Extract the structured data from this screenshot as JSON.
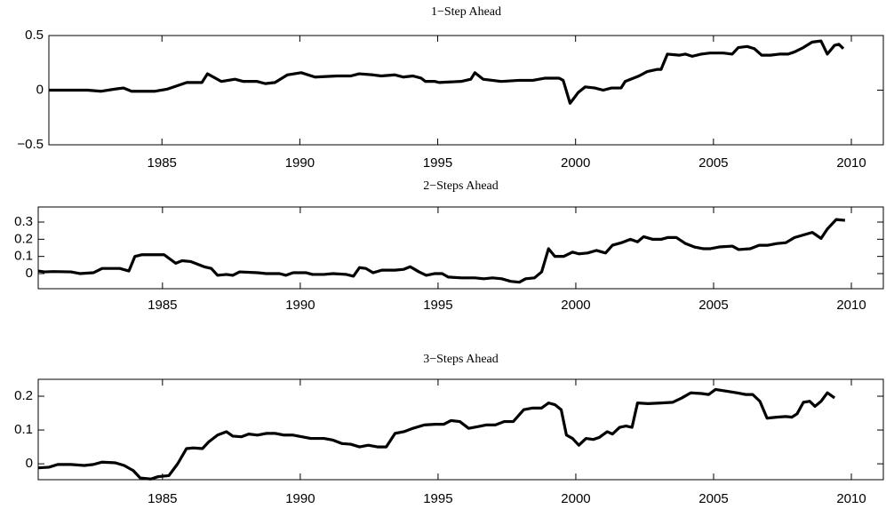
{
  "chart_data": [
    {
      "type": "line",
      "title": "1−Step Ahead",
      "color": "#000000",
      "xlim": [
        1980.9,
        2011.16
      ],
      "ylim": [
        -0.5,
        0.5
      ],
      "xticks": [
        1985,
        1990,
        1995,
        2000,
        2005,
        2010
      ],
      "yticks": [
        {
          "value": -0.5,
          "label": "−0.5"
        },
        0,
        0.5
      ],
      "x": [
        1980.9,
        1982.0,
        1982.3,
        1982.8,
        1983.3,
        1983.6,
        1983.9,
        1984.75,
        1985.2,
        1985.9,
        1986.45,
        1986.65,
        1987.15,
        1987.65,
        1987.95,
        1988.45,
        1988.75,
        1989.1,
        1989.55,
        1990.05,
        1990.55,
        1991.35,
        1991.85,
        1992.15,
        1992.65,
        1992.95,
        1993.45,
        1993.75,
        1994.1,
        1994.4,
        1994.55,
        1994.9,
        1995.05,
        1995.85,
        1996.2,
        1996.35,
        1996.65,
        1997.3,
        1997.95,
        1998.45,
        1998.9,
        1999.4,
        1999.55,
        1999.8,
        2000.1,
        2000.35,
        2000.7,
        2001.0,
        2001.3,
        2001.65,
        2001.8,
        2002.3,
        2002.6,
        2002.95,
        2003.1,
        2003.33,
        2003.75,
        2003.98,
        2004.23,
        2004.55,
        2004.87,
        2005.36,
        2005.68,
        2005.9,
        2006.22,
        2006.48,
        2006.75,
        2007.07,
        2007.39,
        2007.71,
        2007.94,
        2008.26,
        2008.58,
        2008.9,
        2009.13,
        2009.39,
        2009.55,
        2009.71
      ],
      "values": [
        0,
        0,
        0,
        -0.01,
        0.01,
        0.02,
        -0.01,
        -0.01,
        0.01,
        0.07,
        0.07,
        0.15,
        0.08,
        0.1,
        0.08,
        0.08,
        0.06,
        0.07,
        0.14,
        0.16,
        0.12,
        0.13,
        0.13,
        0.15,
        0.14,
        0.13,
        0.14,
        0.12,
        0.13,
        0.11,
        0.08,
        0.08,
        0.07,
        0.08,
        0.1,
        0.16,
        0.1,
        0.08,
        0.09,
        0.09,
        0.11,
        0.11,
        0.09,
        -0.12,
        -0.02,
        0.03,
        0.02,
        0,
        0.02,
        0.02,
        0.08,
        0.13,
        0.17,
        0.19,
        0.19,
        0.33,
        0.32,
        0.33,
        0.31,
        0.33,
        0.34,
        0.34,
        0.33,
        0.39,
        0.4,
        0.38,
        0.32,
        0.32,
        0.33,
        0.33,
        0.35,
        0.39,
        0.44,
        0.45,
        0.33,
        0.41,
        0.42,
        0.38
      ]
    },
    {
      "type": "line",
      "title": "2−Steps Ahead",
      "color": "#000000",
      "xlim": [
        1980.49,
        2011.16
      ],
      "ylim": [
        -0.088,
        0.388
      ],
      "xticks": [
        1985,
        1990,
        1995,
        2000,
        2005,
        2010
      ],
      "yticks": [
        0,
        0.1,
        0.2,
        0.3
      ],
      "x": [
        1980.49,
        1980.72,
        1981.04,
        1981.68,
        1982.0,
        1982.49,
        1982.81,
        1983.13,
        1983.45,
        1983.78,
        1984.0,
        1984.26,
        1984.74,
        1985.06,
        1985.48,
        1985.71,
        1986.03,
        1986.51,
        1986.77,
        1987.0,
        1987.32,
        1987.55,
        1987.8,
        1988.45,
        1988.77,
        1989.25,
        1989.48,
        1989.74,
        1990.22,
        1990.44,
        1990.86,
        1991.19,
        1991.67,
        1991.93,
        1992.15,
        1992.38,
        1992.64,
        1992.96,
        1993.44,
        1993.76,
        1993.99,
        1994.31,
        1994.57,
        1994.89,
        1995.15,
        1995.37,
        1995.86,
        1996.34,
        1996.66,
        1996.98,
        1997.31,
        1997.63,
        1997.95,
        1998.18,
        1998.5,
        1998.76,
        1999.01,
        1999.24,
        1999.56,
        1999.88,
        2000.11,
        2000.43,
        2000.75,
        2001.08,
        2001.33,
        2001.66,
        2001.98,
        2002.24,
        2002.46,
        2002.78,
        2003.11,
        2003.33,
        2003.65,
        2003.98,
        2004.3,
        2004.62,
        2004.88,
        2005.2,
        2005.68,
        2005.91,
        2006.33,
        2006.65,
        2006.97,
        2007.29,
        2007.62,
        2007.94,
        2008.26,
        2008.58,
        2008.9,
        2009.13,
        2009.45,
        2009.77
      ],
      "values": [
        0.015,
        0.01,
        0.012,
        0.01,
        0.0,
        0.005,
        0.03,
        0.03,
        0.03,
        0.015,
        0.1,
        0.11,
        0.11,
        0.11,
        0.06,
        0.075,
        0.07,
        0.04,
        0.03,
        -0.01,
        -0.005,
        -0.01,
        0.01,
        0.005,
        0.0,
        0.0,
        -0.01,
        0.005,
        0.005,
        -0.005,
        -0.005,
        0.0,
        -0.005,
        -0.015,
        0.035,
        0.03,
        0.005,
        0.02,
        0.02,
        0.025,
        0.04,
        0.01,
        -0.01,
        0.0,
        0.0,
        -0.02,
        -0.025,
        -0.025,
        -0.03,
        -0.025,
        -0.03,
        -0.045,
        -0.05,
        -0.03,
        -0.025,
        0.01,
        0.145,
        0.1,
        0.1,
        0.125,
        0.115,
        0.12,
        0.135,
        0.12,
        0.165,
        0.18,
        0.2,
        0.185,
        0.215,
        0.2,
        0.2,
        0.21,
        0.21,
        0.175,
        0.155,
        0.145,
        0.145,
        0.155,
        0.16,
        0.14,
        0.145,
        0.165,
        0.165,
        0.175,
        0.18,
        0.21,
        0.225,
        0.24,
        0.205,
        0.26,
        0.315,
        0.31
      ]
    },
    {
      "type": "line",
      "title": "3−Steps Ahead",
      "color": "#000000",
      "xlim": [
        1980.49,
        2011.16
      ],
      "ylim": [
        -0.047,
        0.25
      ],
      "xticks": [
        1985,
        1990,
        1995,
        2000,
        2005,
        2010
      ],
      "yticks": [
        0,
        0.1,
        0.2
      ],
      "x": [
        1980.49,
        1980.88,
        1981.2,
        1981.68,
        1982.16,
        1982.49,
        1982.81,
        1983.29,
        1983.61,
        1983.94,
        1984.19,
        1984.58,
        1984.84,
        1985.23,
        1985.55,
        1985.87,
        1986.13,
        1986.45,
        1986.68,
        1987.0,
        1987.32,
        1987.55,
        1987.87,
        1988.13,
        1988.45,
        1988.77,
        1989.09,
        1989.41,
        1989.74,
        1990.06,
        1990.38,
        1990.86,
        1991.19,
        1991.51,
        1991.83,
        1992.15,
        1992.47,
        1992.8,
        1993.12,
        1993.44,
        1993.76,
        1994.09,
        1994.5,
        1994.89,
        1995.21,
        1995.47,
        1995.79,
        1996.11,
        1996.44,
        1996.76,
        1997.08,
        1997.4,
        1997.73,
        1998.11,
        1998.43,
        1998.76,
        1999.01,
        1999.24,
        1999.47,
        1999.66,
        1999.88,
        2000.11,
        2000.37,
        2000.63,
        2000.85,
        2001.14,
        2001.33,
        2001.59,
        2001.82,
        2002.04,
        2002.24,
        2002.62,
        2003.11,
        2003.52,
        2003.85,
        2004.17,
        2004.56,
        2004.82,
        2005.07,
        2005.46,
        2005.84,
        2006.17,
        2006.42,
        2006.68,
        2006.94,
        2007.29,
        2007.62,
        2007.84,
        2008.03,
        2008.26,
        2008.49,
        2008.68,
        2008.9,
        2009.13,
        2009.39
      ],
      "values": [
        -0.012,
        -0.01,
        -0.002,
        -0.002,
        -0.005,
        -0.002,
        0.005,
        0.003,
        -0.005,
        -0.02,
        -0.042,
        -0.045,
        -0.038,
        -0.035,
        0.0,
        0.045,
        0.047,
        0.045,
        0.065,
        0.085,
        0.095,
        0.082,
        0.08,
        0.088,
        0.085,
        0.09,
        0.09,
        0.085,
        0.085,
        0.08,
        0.075,
        0.075,
        0.07,
        0.06,
        0.058,
        0.05,
        0.055,
        0.05,
        0.05,
        0.09,
        0.095,
        0.105,
        0.115,
        0.117,
        0.117,
        0.128,
        0.125,
        0.105,
        0.11,
        0.115,
        0.115,
        0.125,
        0.125,
        0.16,
        0.165,
        0.165,
        0.18,
        0.175,
        0.16,
        0.085,
        0.075,
        0.055,
        0.075,
        0.072,
        0.078,
        0.095,
        0.088,
        0.108,
        0.112,
        0.108,
        0.18,
        0.178,
        0.18,
        0.182,
        0.195,
        0.21,
        0.208,
        0.205,
        0.22,
        0.215,
        0.21,
        0.205,
        0.205,
        0.185,
        0.135,
        0.138,
        0.14,
        0.138,
        0.148,
        0.182,
        0.185,
        0.17,
        0.185,
        0.21,
        0.195
      ]
    }
  ]
}
